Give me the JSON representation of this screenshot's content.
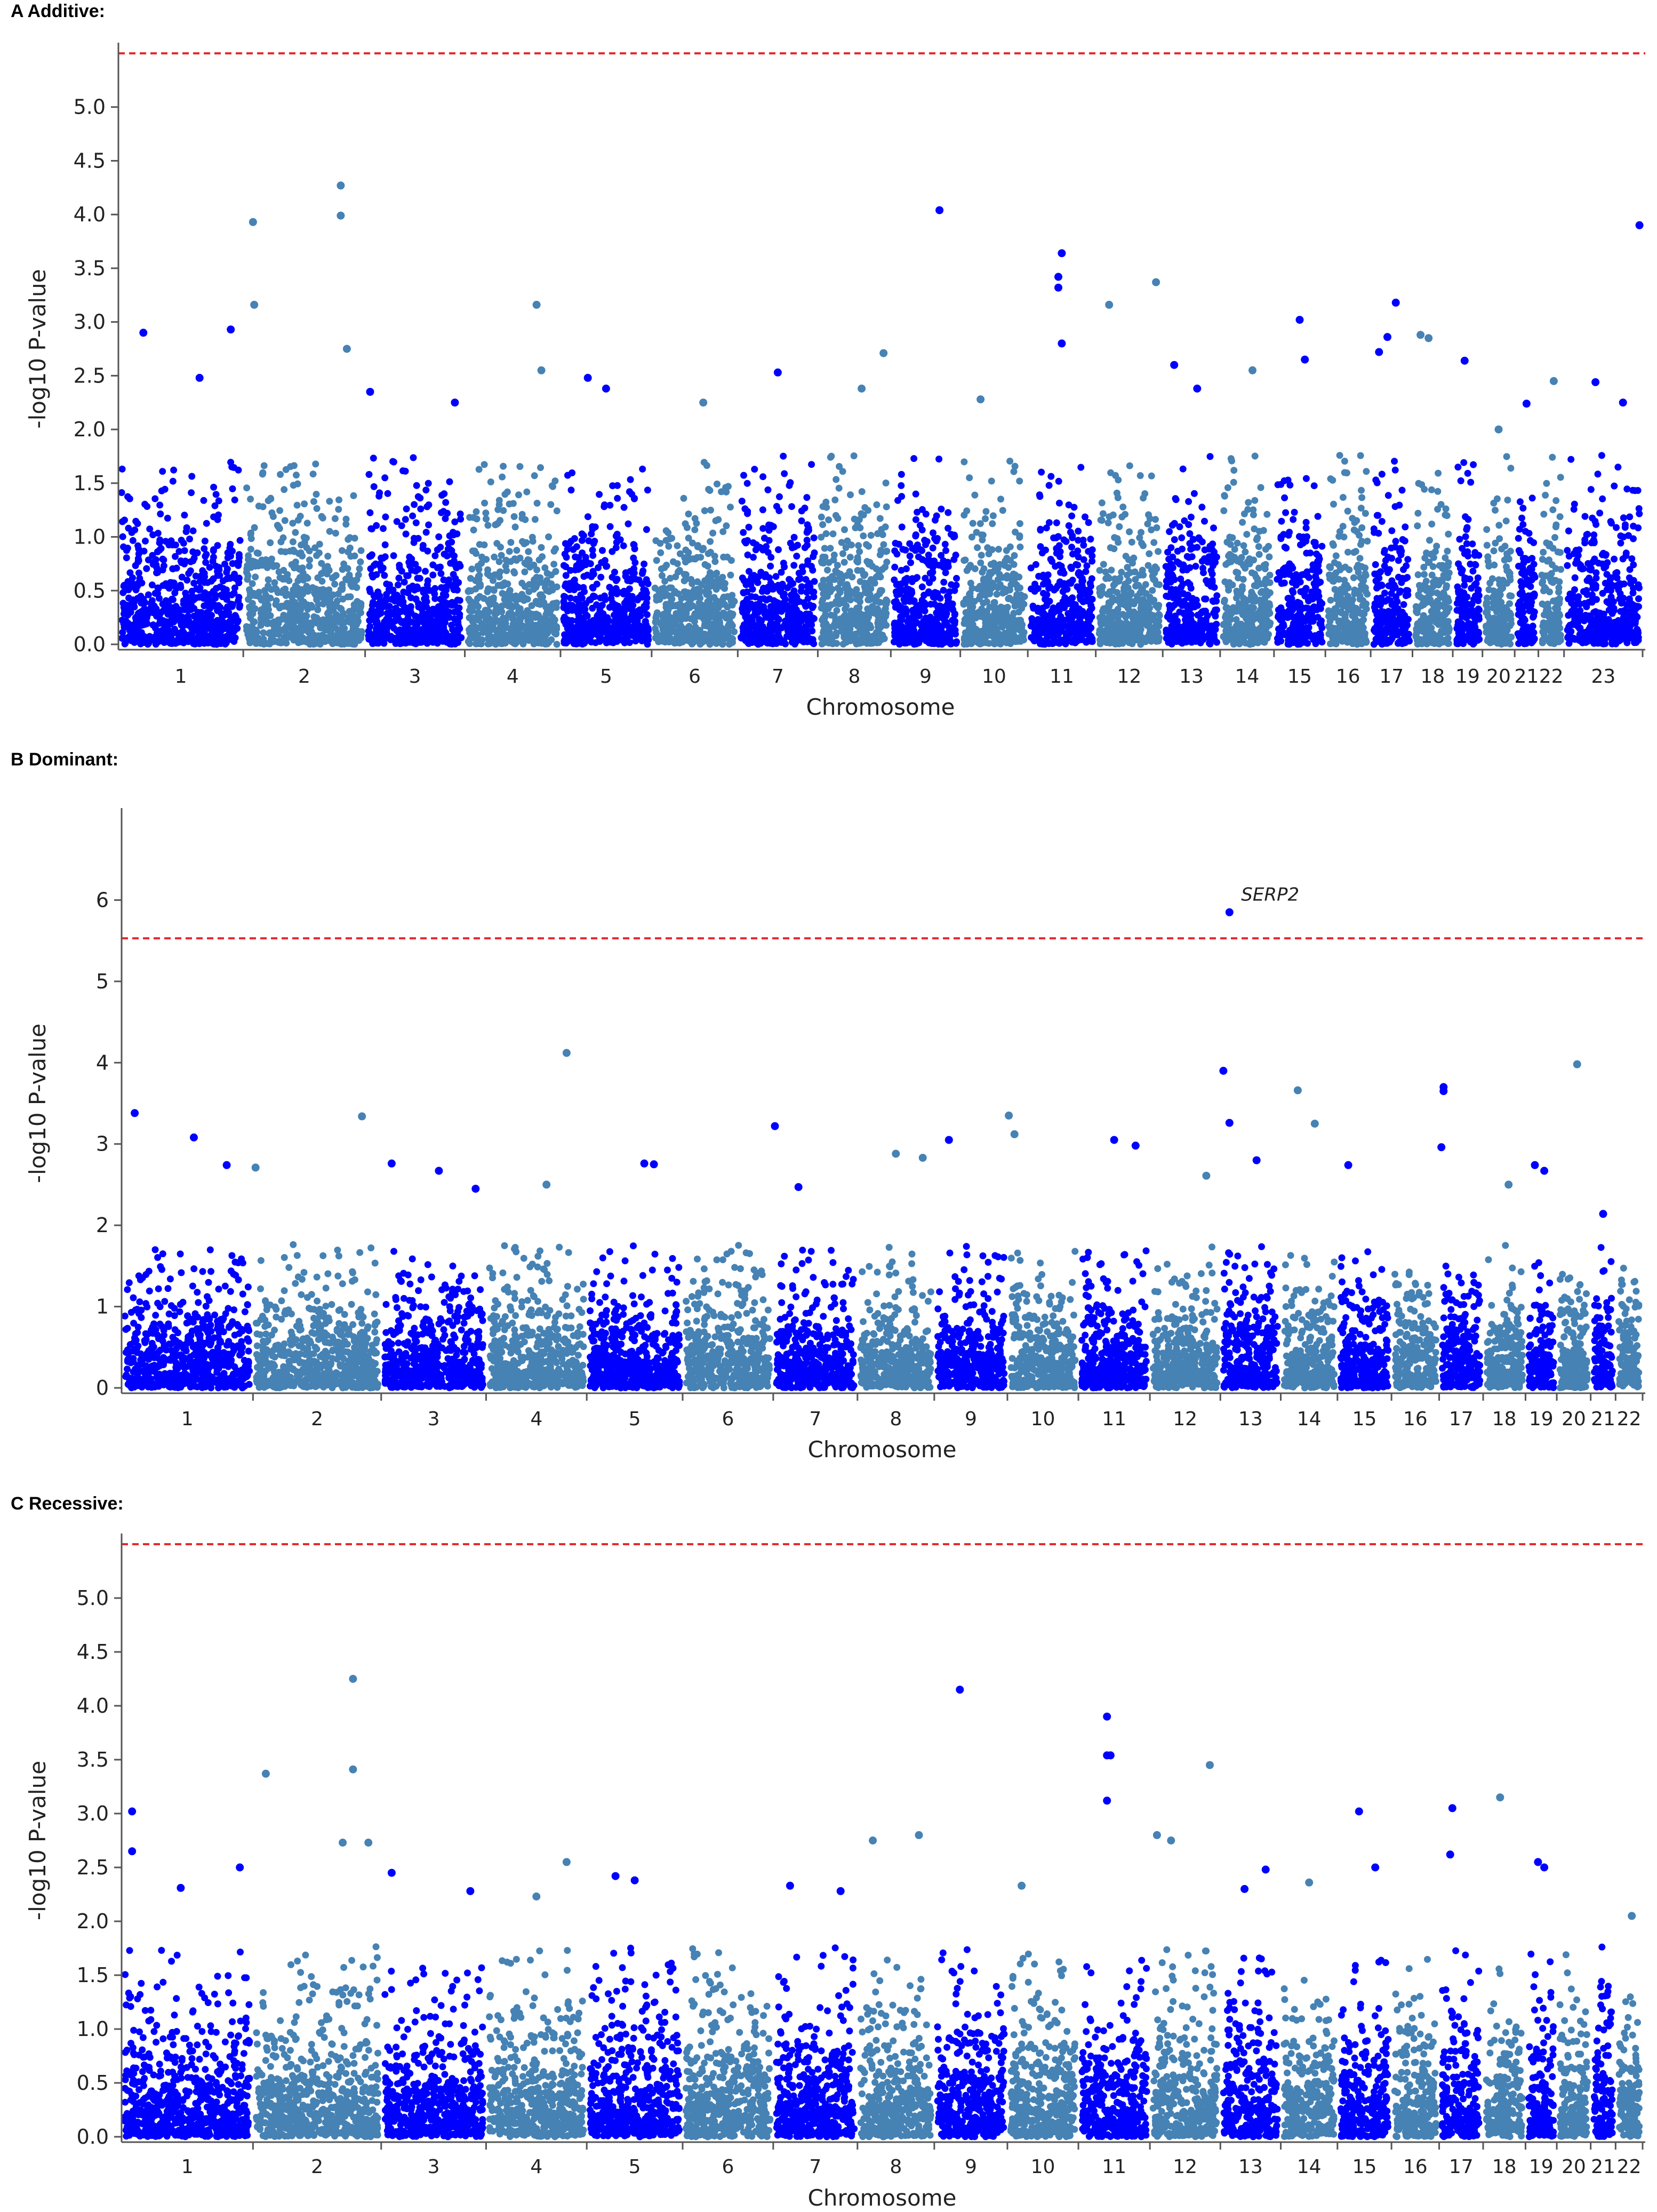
{
  "colors": {
    "dark": "#0000ff",
    "light": "#4682b4",
    "threshold": "#e8282b",
    "axis": "#555555"
  },
  "chart_data": [
    {
      "type": "scatter",
      "panel_label": "A  Additive:",
      "xlabel": "Chromosome",
      "ylabel": "-log10 P-value",
      "ylim": [
        0,
        5.5
      ],
      "yticks": [
        "0.0",
        "0.5",
        "1.0",
        "1.5",
        "2.0",
        "2.5",
        "3.0",
        "3.5",
        "4.0",
        "4.5",
        "5.0"
      ],
      "threshold": 5.5,
      "chromosomes": [
        {
          "label": "1",
          "size": 248,
          "color": "dark"
        },
        {
          "label": "2",
          "size": 242,
          "color": "light"
        },
        {
          "label": "3",
          "size": 198,
          "color": "dark"
        },
        {
          "label": "4",
          "size": 190,
          "color": "light"
        },
        {
          "label": "5",
          "size": 181,
          "color": "dark"
        },
        {
          "label": "6",
          "size": 171,
          "color": "light"
        },
        {
          "label": "7",
          "size": 159,
          "color": "dark"
        },
        {
          "label": "8",
          "size": 145,
          "color": "light"
        },
        {
          "label": "9",
          "size": 138,
          "color": "dark"
        },
        {
          "label": "10",
          "size": 134,
          "color": "light"
        },
        {
          "label": "11",
          "size": 135,
          "color": "dark"
        },
        {
          "label": "12",
          "size": 133,
          "color": "light"
        },
        {
          "label": "13",
          "size": 114,
          "color": "dark"
        },
        {
          "label": "14",
          "size": 107,
          "color": "light"
        },
        {
          "label": "15",
          "size": 102,
          "color": "dark"
        },
        {
          "label": "16",
          "size": 90,
          "color": "light"
        },
        {
          "label": "17",
          "size": 83,
          "color": "dark"
        },
        {
          "label": "18",
          "size": 80,
          "color": "light"
        },
        {
          "label": "19",
          "size": 59,
          "color": "dark"
        },
        {
          "label": "20",
          "size": 64,
          "color": "light"
        },
        {
          "label": "21",
          "size": 47,
          "color": "dark"
        },
        {
          "label": "22",
          "size": 51,
          "color": "light"
        },
        {
          "label": "23",
          "size": 156,
          "color": "dark"
        }
      ],
      "peaks": [
        {
          "chr": "1",
          "pos": 0.2,
          "y": 2.9
        },
        {
          "chr": "1",
          "pos": 0.65,
          "y": 2.48
        },
        {
          "chr": "1",
          "pos": 0.9,
          "y": 2.93
        },
        {
          "chr": "2",
          "pos": 0.08,
          "y": 3.93
        },
        {
          "chr": "2",
          "pos": 0.09,
          "y": 3.16
        },
        {
          "chr": "2",
          "pos": 0.8,
          "y": 4.27
        },
        {
          "chr": "2",
          "pos": 0.8,
          "y": 3.99
        },
        {
          "chr": "2",
          "pos": 0.85,
          "y": 2.75
        },
        {
          "chr": "3",
          "pos": 0.05,
          "y": 2.35
        },
        {
          "chr": "3",
          "pos": 0.9,
          "y": 2.25
        },
        {
          "chr": "4",
          "pos": 0.75,
          "y": 3.16
        },
        {
          "chr": "4",
          "pos": 0.8,
          "y": 2.55
        },
        {
          "chr": "5",
          "pos": 0.3,
          "y": 2.48
        },
        {
          "chr": "5",
          "pos": 0.5,
          "y": 2.38
        },
        {
          "chr": "6",
          "pos": 0.6,
          "y": 2.25
        },
        {
          "chr": "7",
          "pos": 0.5,
          "y": 2.53
        },
        {
          "chr": "8",
          "pos": 0.6,
          "y": 2.38
        },
        {
          "chr": "8",
          "pos": 0.9,
          "y": 2.71
        },
        {
          "chr": "9",
          "pos": 0.7,
          "y": 4.04
        },
        {
          "chr": "10",
          "pos": 0.3,
          "y": 2.28
        },
        {
          "chr": "11",
          "pos": 0.5,
          "y": 3.64
        },
        {
          "chr": "11",
          "pos": 0.45,
          "y": 3.42
        },
        {
          "chr": "11",
          "pos": 0.45,
          "y": 3.32
        },
        {
          "chr": "11",
          "pos": 0.5,
          "y": 2.8
        },
        {
          "chr": "12",
          "pos": 0.2,
          "y": 3.16
        },
        {
          "chr": "12",
          "pos": 0.9,
          "y": 3.37
        },
        {
          "chr": "13",
          "pos": 0.2,
          "y": 2.6
        },
        {
          "chr": "13",
          "pos": 0.6,
          "y": 2.38
        },
        {
          "chr": "14",
          "pos": 0.6,
          "y": 2.55
        },
        {
          "chr": "15",
          "pos": 0.5,
          "y": 3.02
        },
        {
          "chr": "15",
          "pos": 0.6,
          "y": 2.65
        },
        {
          "chr": "17",
          "pos": 0.6,
          "y": 3.18
        },
        {
          "chr": "17",
          "pos": 0.4,
          "y": 2.86
        },
        {
          "chr": "17",
          "pos": 0.2,
          "y": 2.72
        },
        {
          "chr": "18",
          "pos": 0.2,
          "y": 2.88
        },
        {
          "chr": "18",
          "pos": 0.4,
          "y": 2.85
        },
        {
          "chr": "19",
          "pos": 0.4,
          "y": 2.64
        },
        {
          "chr": "20",
          "pos": 0.5,
          "y": 2.0
        },
        {
          "chr": "21",
          "pos": 0.5,
          "y": 2.24
        },
        {
          "chr": "22",
          "pos": 0.6,
          "y": 2.45
        },
        {
          "chr": "23",
          "pos": 0.75,
          "y": 2.25
        },
        {
          "chr": "23",
          "pos": 0.96,
          "y": 3.9
        },
        {
          "chr": "23",
          "pos": 0.4,
          "y": 2.44
        }
      ],
      "annotations": []
    },
    {
      "type": "scatter",
      "panel_label": "B  Dominant:",
      "xlabel": "Chromosome",
      "ylabel": "-log10 P-value",
      "ylim": [
        0,
        7
      ],
      "yticks": [
        "0",
        "1",
        "2",
        "3",
        "4",
        "5",
        "6"
      ],
      "threshold": 5.53,
      "chromosomes": [
        {
          "label": "1",
          "size": 248,
          "color": "dark"
        },
        {
          "label": "2",
          "size": 242,
          "color": "light"
        },
        {
          "label": "3",
          "size": 198,
          "color": "dark"
        },
        {
          "label": "4",
          "size": 190,
          "color": "light"
        },
        {
          "label": "5",
          "size": 181,
          "color": "dark"
        },
        {
          "label": "6",
          "size": 171,
          "color": "light"
        },
        {
          "label": "7",
          "size": 159,
          "color": "dark"
        },
        {
          "label": "8",
          "size": 145,
          "color": "light"
        },
        {
          "label": "9",
          "size": 138,
          "color": "dark"
        },
        {
          "label": "10",
          "size": 134,
          "color": "light"
        },
        {
          "label": "11",
          "size": 135,
          "color": "dark"
        },
        {
          "label": "12",
          "size": 133,
          "color": "light"
        },
        {
          "label": "13",
          "size": 114,
          "color": "dark"
        },
        {
          "label": "14",
          "size": 107,
          "color": "light"
        },
        {
          "label": "15",
          "size": 102,
          "color": "dark"
        },
        {
          "label": "16",
          "size": 90,
          "color": "light"
        },
        {
          "label": "17",
          "size": 83,
          "color": "dark"
        },
        {
          "label": "18",
          "size": 80,
          "color": "light"
        },
        {
          "label": "19",
          "size": 59,
          "color": "dark"
        },
        {
          "label": "20",
          "size": 64,
          "color": "light"
        },
        {
          "label": "21",
          "size": 47,
          "color": "dark"
        },
        {
          "label": "22",
          "size": 51,
          "color": "light"
        }
      ],
      "peaks": [
        {
          "chr": "1",
          "pos": 0.1,
          "y": 3.38
        },
        {
          "chr": "1",
          "pos": 0.55,
          "y": 3.08
        },
        {
          "chr": "1",
          "pos": 0.8,
          "y": 2.74
        },
        {
          "chr": "2",
          "pos": 0.02,
          "y": 2.71
        },
        {
          "chr": "2",
          "pos": 0.85,
          "y": 3.34
        },
        {
          "chr": "3",
          "pos": 0.1,
          "y": 2.76
        },
        {
          "chr": "3",
          "pos": 0.55,
          "y": 2.67
        },
        {
          "chr": "3",
          "pos": 0.9,
          "y": 2.45
        },
        {
          "chr": "4",
          "pos": 0.8,
          "y": 4.12
        },
        {
          "chr": "4",
          "pos": 0.6,
          "y": 2.5
        },
        {
          "chr": "5",
          "pos": 0.6,
          "y": 2.76
        },
        {
          "chr": "5",
          "pos": 0.7,
          "y": 2.75
        },
        {
          "chr": "7",
          "pos": 0.02,
          "y": 3.22
        },
        {
          "chr": "7",
          "pos": 0.3,
          "y": 2.47
        },
        {
          "chr": "8",
          "pos": 0.5,
          "y": 2.88
        },
        {
          "chr": "8",
          "pos": 0.85,
          "y": 2.83
        },
        {
          "chr": "9",
          "pos": 0.2,
          "y": 3.05
        },
        {
          "chr": "10",
          "pos": 0.02,
          "y": 3.35
        },
        {
          "chr": "10",
          "pos": 0.1,
          "y": 3.12
        },
        {
          "chr": "11",
          "pos": 0.5,
          "y": 3.05
        },
        {
          "chr": "11",
          "pos": 0.8,
          "y": 2.98
        },
        {
          "chr": "12",
          "pos": 0.8,
          "y": 2.61
        },
        {
          "chr": "13",
          "pos": 0.15,
          "y": 5.85
        },
        {
          "chr": "13",
          "pos": 0.05,
          "y": 3.9
        },
        {
          "chr": "13",
          "pos": 0.15,
          "y": 3.26
        },
        {
          "chr": "13",
          "pos": 0.6,
          "y": 2.8
        },
        {
          "chr": "14",
          "pos": 0.3,
          "y": 3.66
        },
        {
          "chr": "14",
          "pos": 0.6,
          "y": 3.25
        },
        {
          "chr": "15",
          "pos": 0.2,
          "y": 2.74
        },
        {
          "chr": "17",
          "pos": 0.1,
          "y": 3.7
        },
        {
          "chr": "17",
          "pos": 0.1,
          "y": 3.65
        },
        {
          "chr": "17",
          "pos": 0.05,
          "y": 2.96
        },
        {
          "chr": "18",
          "pos": 0.6,
          "y": 2.5
        },
        {
          "chr": "19",
          "pos": 0.3,
          "y": 2.74
        },
        {
          "chr": "19",
          "pos": 0.6,
          "y": 2.67
        },
        {
          "chr": "20",
          "pos": 0.6,
          "y": 3.98
        },
        {
          "chr": "21",
          "pos": 0.5,
          "y": 2.14
        }
      ],
      "annotations": [
        {
          "text": "SERP2",
          "chr": "13",
          "pos": 0.15,
          "y": 5.85
        }
      ]
    },
    {
      "type": "scatter",
      "panel_label": "C  Recessive:",
      "xlabel": "Chromosome",
      "ylabel": "-log10 P-value",
      "ylim": [
        0,
        5.5
      ],
      "yticks": [
        "0.0",
        "0.5",
        "1.0",
        "1.5",
        "2.0",
        "2.5",
        "3.0",
        "3.5",
        "4.0",
        "4.5",
        "5.0"
      ],
      "threshold": 5.5,
      "chromosomes": [
        {
          "label": "1",
          "size": 248,
          "color": "dark"
        },
        {
          "label": "2",
          "size": 242,
          "color": "light"
        },
        {
          "label": "3",
          "size": 198,
          "color": "dark"
        },
        {
          "label": "4",
          "size": 190,
          "color": "light"
        },
        {
          "label": "5",
          "size": 181,
          "color": "dark"
        },
        {
          "label": "6",
          "size": 171,
          "color": "light"
        },
        {
          "label": "7",
          "size": 159,
          "color": "dark"
        },
        {
          "label": "8",
          "size": 145,
          "color": "light"
        },
        {
          "label": "9",
          "size": 138,
          "color": "dark"
        },
        {
          "label": "10",
          "size": 134,
          "color": "light"
        },
        {
          "label": "11",
          "size": 135,
          "color": "dark"
        },
        {
          "label": "12",
          "size": 133,
          "color": "light"
        },
        {
          "label": "13",
          "size": 114,
          "color": "dark"
        },
        {
          "label": "14",
          "size": 107,
          "color": "light"
        },
        {
          "label": "15",
          "size": 102,
          "color": "dark"
        },
        {
          "label": "16",
          "size": 90,
          "color": "light"
        },
        {
          "label": "17",
          "size": 83,
          "color": "dark"
        },
        {
          "label": "18",
          "size": 80,
          "color": "light"
        },
        {
          "label": "19",
          "size": 59,
          "color": "dark"
        },
        {
          "label": "20",
          "size": 64,
          "color": "light"
        },
        {
          "label": "21",
          "size": 47,
          "color": "dark"
        },
        {
          "label": "22",
          "size": 51,
          "color": "light"
        }
      ],
      "peaks": [
        {
          "chr": "1",
          "pos": 0.08,
          "y": 3.02
        },
        {
          "chr": "1",
          "pos": 0.08,
          "y": 2.65
        },
        {
          "chr": "1",
          "pos": 0.45,
          "y": 2.31
        },
        {
          "chr": "1",
          "pos": 0.9,
          "y": 2.5
        },
        {
          "chr": "2",
          "pos": 0.1,
          "y": 3.37
        },
        {
          "chr": "2",
          "pos": 0.78,
          "y": 4.25
        },
        {
          "chr": "2",
          "pos": 0.78,
          "y": 3.41
        },
        {
          "chr": "2",
          "pos": 0.7,
          "y": 2.73
        },
        {
          "chr": "2",
          "pos": 0.9,
          "y": 2.73
        },
        {
          "chr": "3",
          "pos": 0.1,
          "y": 2.45
        },
        {
          "chr": "3",
          "pos": 0.85,
          "y": 2.28
        },
        {
          "chr": "4",
          "pos": 0.8,
          "y": 2.55
        },
        {
          "chr": "4",
          "pos": 0.5,
          "y": 2.23
        },
        {
          "chr": "5",
          "pos": 0.3,
          "y": 2.42
        },
        {
          "chr": "5",
          "pos": 0.5,
          "y": 2.38
        },
        {
          "chr": "7",
          "pos": 0.2,
          "y": 2.33
        },
        {
          "chr": "7",
          "pos": 0.8,
          "y": 2.28
        },
        {
          "chr": "8",
          "pos": 0.2,
          "y": 2.75
        },
        {
          "chr": "8",
          "pos": 0.8,
          "y": 2.8
        },
        {
          "chr": "9",
          "pos": 0.35,
          "y": 4.15
        },
        {
          "chr": "10",
          "pos": 0.2,
          "y": 2.33
        },
        {
          "chr": "11",
          "pos": 0.4,
          "y": 3.9
        },
        {
          "chr": "11",
          "pos": 0.4,
          "y": 3.54
        },
        {
          "chr": "11",
          "pos": 0.45,
          "y": 3.54
        },
        {
          "chr": "11",
          "pos": 0.4,
          "y": 3.12
        },
        {
          "chr": "12",
          "pos": 0.1,
          "y": 2.8
        },
        {
          "chr": "12",
          "pos": 0.3,
          "y": 2.75
        },
        {
          "chr": "12",
          "pos": 0.85,
          "y": 3.45
        },
        {
          "chr": "13",
          "pos": 0.4,
          "y": 2.3
        },
        {
          "chr": "13",
          "pos": 0.75,
          "y": 2.48
        },
        {
          "chr": "14",
          "pos": 0.5,
          "y": 2.36
        },
        {
          "chr": "15",
          "pos": 0.4,
          "y": 3.02
        },
        {
          "chr": "15",
          "pos": 0.7,
          "y": 2.5
        },
        {
          "chr": "17",
          "pos": 0.3,
          "y": 3.05
        },
        {
          "chr": "17",
          "pos": 0.25,
          "y": 2.62
        },
        {
          "chr": "18",
          "pos": 0.4,
          "y": 3.15
        },
        {
          "chr": "19",
          "pos": 0.4,
          "y": 2.55
        },
        {
          "chr": "19",
          "pos": 0.6,
          "y": 2.5
        },
        {
          "chr": "22",
          "pos": 0.6,
          "y": 2.05
        }
      ],
      "annotations": []
    }
  ]
}
